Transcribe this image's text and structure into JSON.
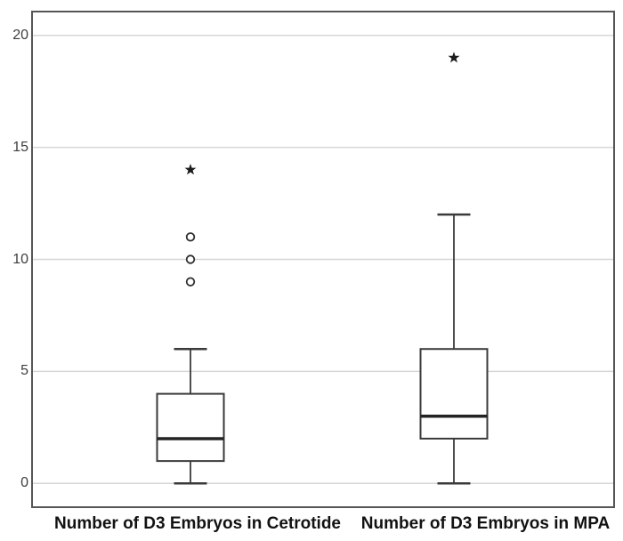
{
  "figure": {
    "background": "#ffffff",
    "frame_color": "#565656",
    "gridline_color": "#d6d6d6"
  },
  "chart_data": {
    "type": "boxplot",
    "title": "",
    "xlabel": "",
    "ylabel": "",
    "ylim": [
      -1.1,
      21.1
    ],
    "yticks": [
      0,
      5,
      10,
      15,
      20
    ],
    "grid": "horizontal",
    "legend": "none",
    "categories": [
      "Number of D3 Embryos in Cetrotide",
      "Number of D3 Embryos in MPA"
    ],
    "series": [
      {
        "name": "Number of D3 Embryos in Cetrotide",
        "whisker_low": 0,
        "q1": 1,
        "median": 2,
        "q3": 4,
        "whisker_high": 6,
        "outliers": [
          9,
          10,
          11
        ],
        "extremes": [
          14
        ]
      },
      {
        "name": "Number of D3 Embryos in MPA",
        "whisker_low": 0,
        "q1": 2,
        "median": 3,
        "q3": 6,
        "whisker_high": 12,
        "outliers": [],
        "extremes": [
          19
        ]
      }
    ],
    "markers": {
      "outlier_symbol": "circle",
      "extreme_symbol": "star"
    },
    "colors": {
      "box_fill": "#ffffff",
      "box_stroke": "#3a3a3a",
      "median": "#232323",
      "whisker": "#3a3a3a",
      "marker_stroke": "#2e2e2e",
      "star_fill": "#1c1c1c"
    }
  }
}
